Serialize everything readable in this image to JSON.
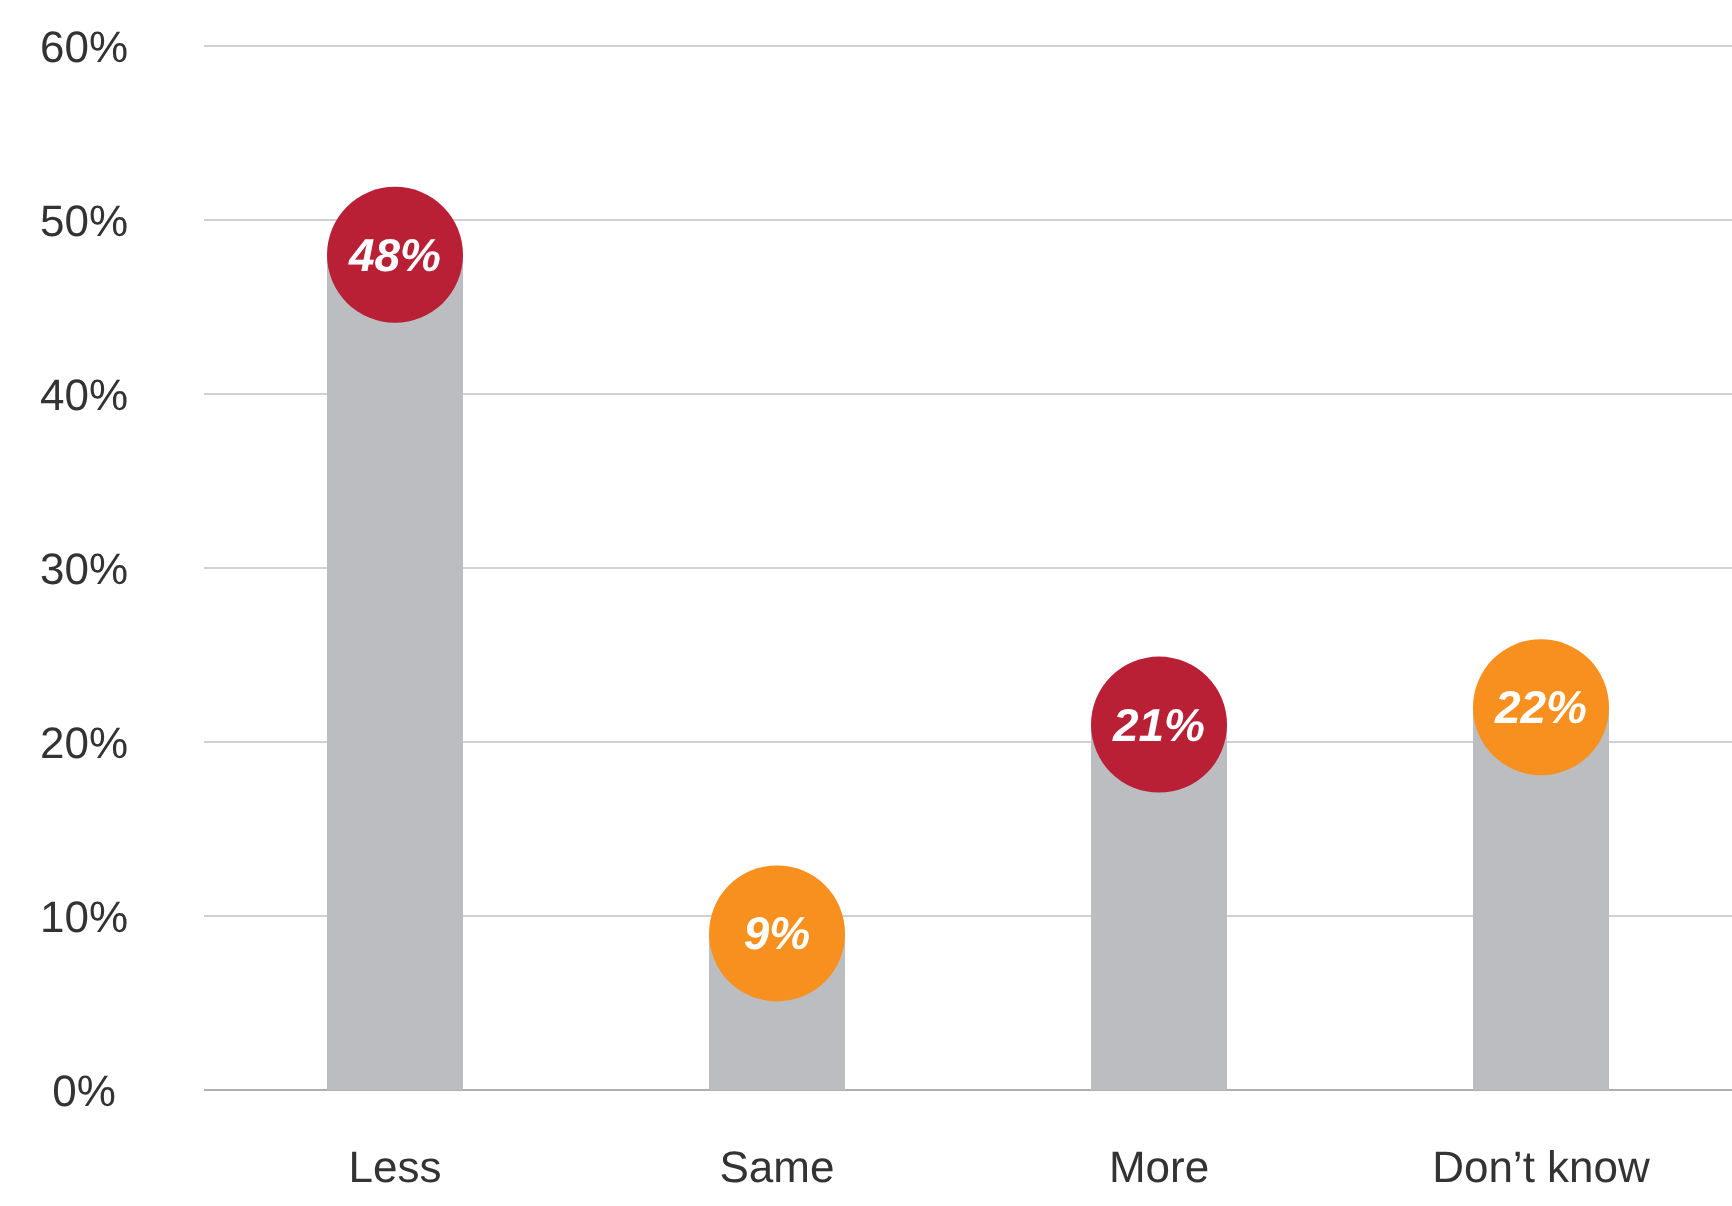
{
  "chart_data": {
    "type": "bar",
    "categories": [
      "Less",
      "Same",
      "More",
      "Don’t know"
    ],
    "series": [
      {
        "color": "#bcbdc0",
        "values": [
          48,
          9,
          21,
          22
        ]
      },
      {
        "type": "scatter",
        "colors": [
          "#b91f35",
          "#f7901e",
          "#b91f35",
          "#f7901e"
        ],
        "values": [
          48,
          9,
          21,
          22
        ],
        "value_labels": [
          "48%",
          "9%",
          "21%",
          "22%"
        ]
      }
    ],
    "ylim": [
      0,
      60
    ],
    "yticks": [
      {
        "value": 0,
        "label": "0%"
      },
      {
        "value": 10,
        "label": "10%"
      },
      {
        "value": 20,
        "label": "20%"
      },
      {
        "value": 30,
        "label": "30%"
      },
      {
        "value": 40,
        "label": "40%"
      },
      {
        "value": 50,
        "label": "50%"
      },
      {
        "value": 60,
        "label": "60%"
      }
    ],
    "grid": "y",
    "marker": "circle"
  }
}
